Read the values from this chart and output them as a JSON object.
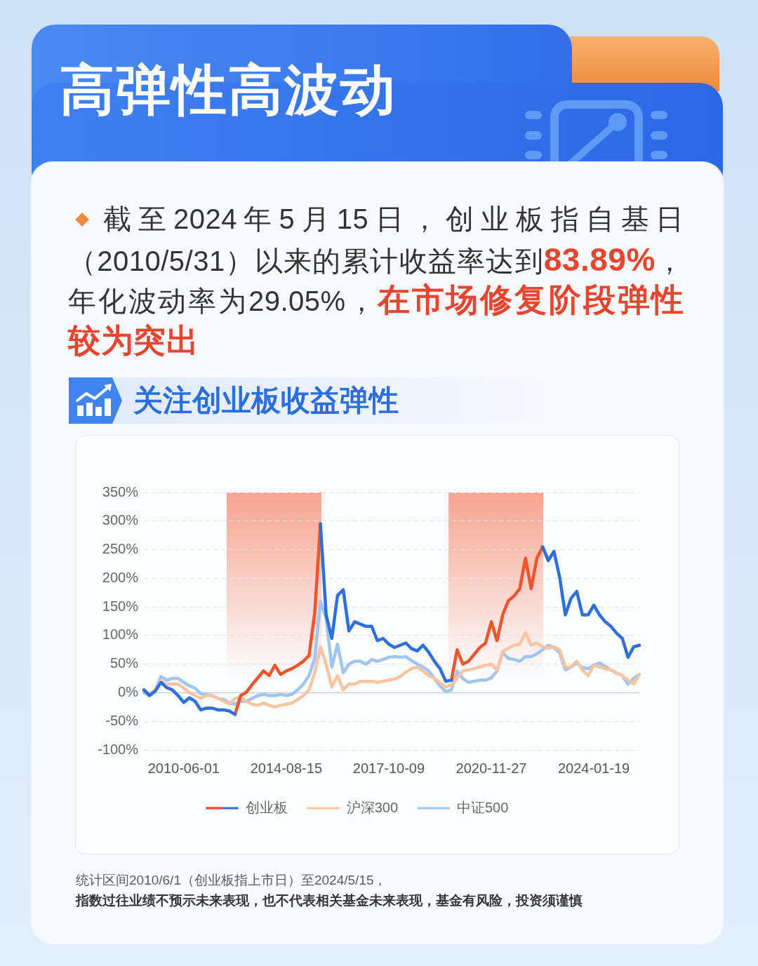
{
  "chart_data": {
    "type": "line",
    "title": "高弹性高波动",
    "subtitle": "关注创业板收益弹性",
    "annotations": [
      "截至2024年5月15日，创业板指自基日",
      "（2010/5/31）以来的累计收益率达到",
      "83.89%",
      "，",
      "年化波动率为29.05%，",
      "在市场修复阶段弹性",
      "较为突出",
      "统计区间2010/6/1（创业板指上市日）至2024/5/15，",
      "指数过往业绩不预示未来表现，也不代表相关基金未来表现，基金有风险，投资须谨慎"
    ],
    "categories": [
      null,
      null,
      null,
      null,
      null,
      null,
      null,
      "2010-06-01",
      null,
      null,
      null,
      null,
      null,
      null,
      null,
      null,
      null,
      null,
      null,
      null,
      null,
      null,
      null,
      null,
      null,
      "2014-08-15",
      null,
      null,
      null,
      null,
      null,
      null,
      null,
      null,
      null,
      null,
      null,
      null,
      null,
      null,
      null,
      null,
      null,
      "2017-10-09",
      null,
      null,
      null,
      null,
      null,
      null,
      null,
      null,
      null,
      null,
      null,
      null,
      null,
      null,
      null,
      null,
      null,
      "2020-11-27",
      null,
      null,
      null,
      null,
      null,
      null,
      null,
      null,
      null,
      null,
      null,
      null,
      null,
      null,
      null,
      null,
      null,
      "2024-01-19",
      null,
      null,
      null,
      null,
      null,
      null,
      null,
      null
    ],
    "ylim": [
      -100,
      350
    ],
    "yticks": [
      {
        "value": -100,
        "label": "-100%"
      },
      {
        "value": -50,
        "label": "-50%"
      },
      {
        "value": 0,
        "label": "0%"
      },
      {
        "value": 50,
        "label": "50%"
      },
      {
        "value": 100,
        "label": "100%"
      },
      {
        "value": 150,
        "label": "150%"
      },
      {
        "value": 200,
        "label": "200%"
      },
      {
        "value": 250,
        "label": "250%"
      },
      {
        "value": 300,
        "label": "300%"
      },
      {
        "value": 350,
        "label": "350%"
      }
    ],
    "grid": "y",
    "legend": "bottom",
    "marker": "none",
    "line_style": "solid",
    "series": [
      {
        "name": "创业板",
        "color": "#2d6fdc",
        "values": [
          5,
          -5,
          3,
          18,
          9,
          5,
          -5,
          -17,
          -9,
          -15,
          -30,
          -27,
          -27,
          -30,
          -30,
          -32,
          -38,
          null,
          null,
          null,
          null,
          null,
          null,
          null,
          null,
          null,
          null,
          null,
          null,
          null,
          null,
          295,
          136,
          95,
          170,
          180,
          108,
          124,
          120,
          116,
          116,
          91,
          95,
          85,
          79,
          83,
          87,
          77,
          73,
          83,
          71,
          55,
          42,
          20,
          22,
          null,
          null,
          null,
          null,
          null,
          null,
          null,
          null,
          null,
          null,
          null,
          null,
          null,
          null,
          null,
          255,
          231,
          247,
          202,
          136,
          165,
          177,
          136,
          136,
          153,
          136,
          124,
          116,
          104,
          95,
          62,
          80,
          83
        ]
      },
      {
        "color": "#f1532c",
        "values": [
          null,
          null,
          null,
          null,
          null,
          null,
          null,
          null,
          null,
          null,
          null,
          null,
          null,
          null,
          null,
          null,
          -38,
          -5,
          1,
          14,
          26,
          38,
          30,
          48,
          32,
          38,
          42,
          48,
          55,
          65,
          140,
          295,
          null,
          null,
          null,
          null,
          null,
          null,
          null,
          null,
          null,
          null,
          null,
          null,
          null,
          null,
          null,
          null,
          null,
          null,
          null,
          null,
          null,
          null,
          22,
          75,
          50,
          55,
          67,
          79,
          87,
          124,
          91,
          136,
          161,
          169,
          182,
          235,
          182,
          235,
          255,
          null,
          null,
          null,
          null,
          null,
          null,
          null,
          null,
          null,
          null,
          null,
          null,
          null,
          null,
          null,
          null,
          null
        ]
      },
      {
        "name": "沪深300",
        "color": "#f9c4a2",
        "values": [
          5,
          -2,
          5,
          20,
          15,
          15,
          15,
          8,
          0,
          -5,
          -10,
          -5,
          -5,
          -10,
          -15,
          -20,
          -10,
          -8,
          -15,
          -20,
          -22,
          -18,
          -22,
          -25,
          -22,
          -20,
          -18,
          -12,
          -5,
          5,
          35,
          80,
          50,
          10,
          30,
          5,
          15,
          15,
          20,
          20,
          20,
          18,
          20,
          22,
          24,
          28,
          36,
          42,
          45,
          38,
          30,
          25,
          18,
          10,
          14,
          25,
          38,
          40,
          42,
          45,
          48,
          50,
          40,
          72,
          78,
          83,
          85,
          105,
          83,
          87,
          80,
          78,
          80,
          75,
          45,
          45,
          55,
          40,
          30,
          48,
          45,
          42,
          40,
          35,
          30,
          22,
          15,
          32
        ]
      },
      {
        "name": "中证500",
        "color": "#9fc5f0",
        "values": [
          0,
          -5,
          5,
          28,
          22,
          25,
          25,
          18,
          12,
          8,
          -2,
          -3,
          -5,
          -10,
          -12,
          -18,
          -20,
          -15,
          -15,
          -10,
          -5,
          -3,
          -5,
          -5,
          -3,
          -5,
          -3,
          5,
          15,
          30,
          60,
          160,
          130,
          45,
          85,
          35,
          50,
          55,
          55,
          50,
          58,
          55,
          58,
          62,
          63,
          62,
          63,
          56,
          50,
          45,
          38,
          25,
          12,
          2,
          5,
          38,
          25,
          18,
          20,
          22,
          22,
          26,
          38,
          70,
          60,
          58,
          55,
          63,
          63,
          68,
          75,
          83,
          79,
          70,
          40,
          45,
          52,
          44,
          42,
          48,
          52,
          46,
          40,
          34,
          30,
          15,
          25,
          32
        ]
      }
    ]
  }
}
